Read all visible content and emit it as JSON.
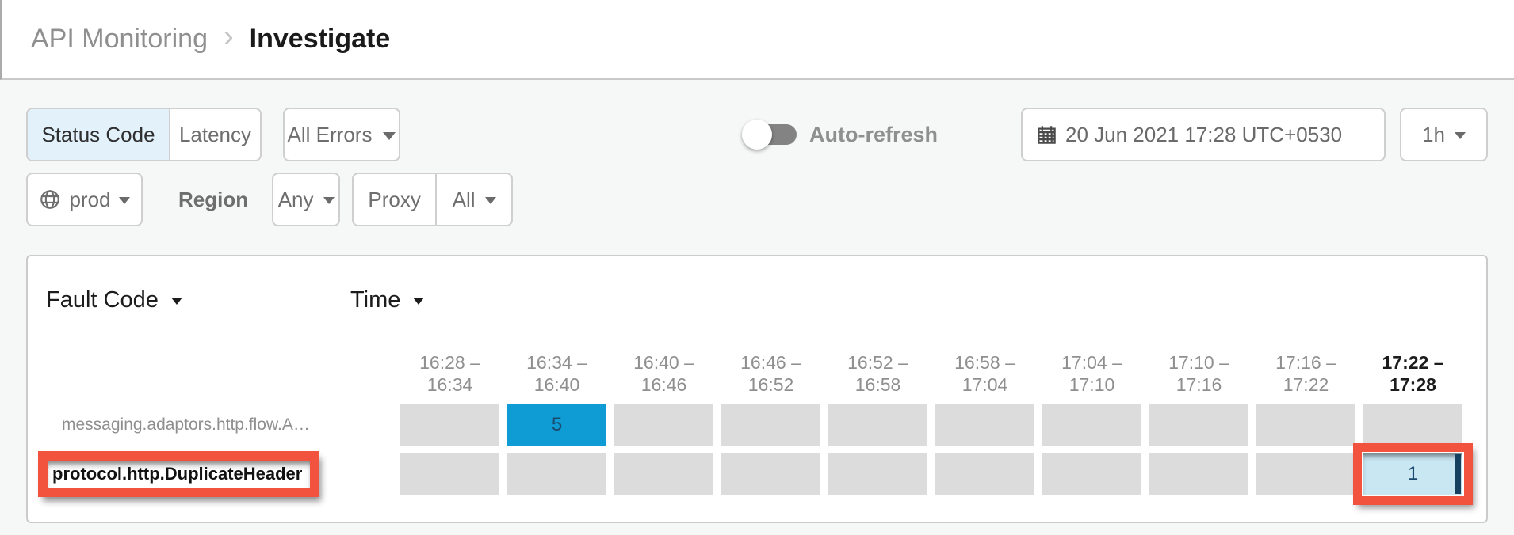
{
  "breadcrumb": {
    "section": "API Monitoring",
    "separator": "›",
    "page": "Investigate"
  },
  "filters": {
    "metric_tabs": [
      {
        "label": "Status Code",
        "selected": true
      },
      {
        "label": "Latency",
        "selected": false
      }
    ],
    "error_filter": {
      "label": "All Errors",
      "icon": "caret-down-icon"
    },
    "auto_refresh": {
      "label": "Auto-refresh",
      "enabled": false
    },
    "datetime": {
      "value": "20 Jun 2021 17:28 UTC+0530",
      "icon": "calendar-icon"
    },
    "duration": {
      "value": "1h",
      "icon": "caret-down-icon"
    },
    "environment": {
      "value": "prod",
      "icon": "globe-icon"
    },
    "region": {
      "label": "Region",
      "value": "Any"
    },
    "proxy": {
      "label": "Proxy",
      "value": "All"
    }
  },
  "matrix": {
    "row_dimension": {
      "label": "Fault Code"
    },
    "col_dimension": {
      "label": "Time"
    },
    "columns": [
      {
        "text": "16:28 –\n16:34",
        "current": false
      },
      {
        "text": "16:34 –\n16:40",
        "current": false
      },
      {
        "text": "16:40 –\n16:46",
        "current": false
      },
      {
        "text": "16:46 –\n16:52",
        "current": false
      },
      {
        "text": "16:52 –\n16:58",
        "current": false
      },
      {
        "text": "16:58 –\n17:04",
        "current": false
      },
      {
        "text": "17:04 –\n17:10",
        "current": false
      },
      {
        "text": "17:10 –\n17:16",
        "current": false
      },
      {
        "text": "17:16 –\n17:22",
        "current": false
      },
      {
        "text": "17:22 –\n17:28",
        "current": true
      }
    ],
    "rows": [
      {
        "label": "messaging.adaptors.http.flow.A…",
        "label_annotated": false,
        "cells": [
          null,
          {
            "value": 5,
            "tone": "high"
          },
          null,
          null,
          null,
          null,
          null,
          null,
          null,
          null
        ]
      },
      {
        "label": "protocol.http.DuplicateHeader",
        "label_annotated": true,
        "cells": [
          null,
          null,
          null,
          null,
          null,
          null,
          null,
          null,
          null,
          {
            "value": 1,
            "tone": "low",
            "annotated": true,
            "time_cursor": true
          }
        ]
      }
    ]
  },
  "colors": {
    "accent_selected_tab": "#e3f1fb",
    "heat_high": "#0f9cd5",
    "heat_low": "#c9e6f3",
    "heat_value_text": "#1b4a6e",
    "cell_empty": "#dcdcdc",
    "annotation_red": "#f2533f",
    "time_cursor_navy": "#16405f"
  }
}
